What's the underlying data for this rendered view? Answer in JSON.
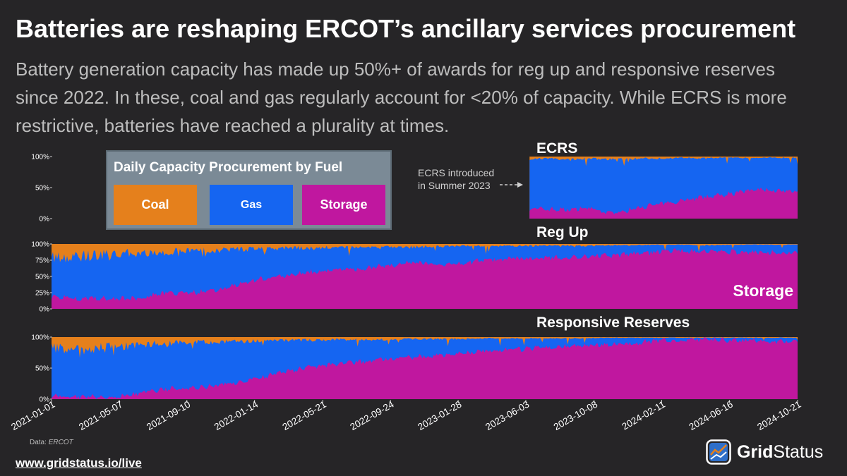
{
  "title": "Batteries are reshaping ERCOT’s ancillary services procurement",
  "subtitle": "Battery generation capacity has made up 50%+ of awards for reg up and responsive reserves since 2022. In these, coal and gas regularly account for <20% of capacity. While ECRS is more restrictive, batteries have reached a plurality at times.",
  "source_label": "Data:",
  "source_name": "ERCOT",
  "footer_link": "www.gridstatus.io/live",
  "brand": {
    "part1": "Grid",
    "part2": "Status"
  },
  "legend": {
    "title": "Daily Capacity Procurement by Fuel",
    "items": [
      {
        "label": "Coal",
        "color": "#e5801c"
      },
      {
        "label": "Gas",
        "color": "#1565f1"
      },
      {
        "label": "Storage",
        "color": "#c0179f"
      }
    ]
  },
  "annotation": {
    "line1": "ECRS introduced",
    "line2": "in Summer 2023"
  },
  "colors": {
    "coal": "#e5801c",
    "gas": "#1565f1",
    "storage": "#c0179f",
    "background": "#262527",
    "text_muted": "#bdbdbd"
  },
  "chart_data": {
    "type": "area",
    "stacked": true,
    "percent": true,
    "x_range": [
      "2021-01-01",
      "2024-10-21"
    ],
    "x_tick_labels": [
      "2021-01-01",
      "2021-05-07",
      "2021-09-10",
      "2022-01-14",
      "2022-05-21",
      "2022-09-24",
      "2023-01-28",
      "2023-06-03",
      "2023-10-08",
      "2024-02-11",
      "2024-06-16",
      "2024-10-21"
    ],
    "series_names": [
      "Coal",
      "Gas",
      "Storage"
    ],
    "panels": [
      {
        "title": "ECRS",
        "y_ticks": [
          "100%",
          "50%",
          "0%"
        ],
        "start": "2023-06-10",
        "dates": [
          "2023-06-10",
          "2023-07-15",
          "2023-08-20",
          "2023-09-25",
          "2023-10-25",
          "2023-12-01",
          "2024-01-10",
          "2024-02-15",
          "2024-03-20",
          "2024-04-25",
          "2024-06-01",
          "2024-07-10",
          "2024-08-15",
          "2024-09-20",
          "2024-10-21"
        ],
        "storage": [
          16,
          15,
          14,
          18,
          9,
          11,
          20,
          24,
          30,
          34,
          38,
          43,
          47,
          44,
          42
        ],
        "coal": [
          4,
          3,
          5,
          3,
          4,
          4,
          3,
          3,
          2,
          3,
          2,
          2,
          2,
          2,
          2
        ]
      },
      {
        "title": "Reg Up",
        "overlay_label": "Storage",
        "y_ticks": [
          "100%",
          "75%",
          "50%",
          "25%",
          "0%"
        ],
        "start": "2021-01-01",
        "dates": [
          "2021-01-01",
          "2021-03-01",
          "2021-05-01",
          "2021-06-15",
          "2021-08-01",
          "2021-09-15",
          "2021-11-01",
          "2021-12-15",
          "2022-02-01",
          "2022-03-15",
          "2022-05-01",
          "2022-06-15",
          "2022-08-01",
          "2022-09-15",
          "2022-11-01",
          "2022-12-15",
          "2023-02-01",
          "2023-03-15",
          "2023-05-01",
          "2023-06-15",
          "2023-08-01",
          "2023-09-15",
          "2023-11-01",
          "2023-12-15",
          "2024-02-01",
          "2024-03-15",
          "2024-05-01",
          "2024-06-15",
          "2024-08-01",
          "2024-09-15",
          "2024-10-21"
        ],
        "storage": [
          18,
          16,
          15,
          17,
          24,
          25,
          28,
          38,
          47,
          52,
          57,
          60,
          62,
          66,
          72,
          68,
          70,
          74,
          77,
          79,
          80,
          80,
          82,
          84,
          88,
          90,
          89,
          88,
          87,
          86,
          86
        ],
        "coal": [
          20,
          18,
          16,
          14,
          12,
          10,
          10,
          8,
          8,
          6,
          6,
          5,
          5,
          4,
          5,
          4,
          3,
          3,
          3,
          3,
          2,
          3,
          2,
          2,
          1,
          1,
          2,
          1,
          1,
          1,
          1
        ]
      },
      {
        "title": "Responsive Reserves",
        "y_ticks": [
          "100%",
          "50%",
          "0%"
        ],
        "start": "2021-01-01",
        "dates": [
          "2021-01-01",
          "2021-03-01",
          "2021-05-01",
          "2021-06-15",
          "2021-08-01",
          "2021-09-15",
          "2021-11-01",
          "2021-12-15",
          "2022-02-01",
          "2022-03-15",
          "2022-05-01",
          "2022-06-15",
          "2022-08-01",
          "2022-09-15",
          "2022-11-01",
          "2022-12-15",
          "2023-02-01",
          "2023-03-15",
          "2023-05-01",
          "2023-06-15",
          "2023-08-01",
          "2023-09-15",
          "2023-11-01",
          "2023-12-15",
          "2024-02-01",
          "2024-03-15",
          "2024-05-01",
          "2024-06-15",
          "2024-08-01",
          "2024-09-15",
          "2024-10-21"
        ],
        "storage": [
          5,
          4,
          3,
          10,
          16,
          18,
          22,
          28,
          36,
          45,
          52,
          56,
          60,
          64,
          68,
          70,
          74,
          78,
          80,
          82,
          84,
          86,
          88,
          90,
          94,
          95,
          96,
          95,
          94,
          93,
          93
        ],
        "coal": [
          18,
          20,
          16,
          12,
          10,
          8,
          8,
          7,
          6,
          5,
          5,
          4,
          4,
          4,
          3,
          3,
          3,
          2,
          2,
          2,
          2,
          2,
          1,
          1,
          1,
          1,
          1,
          1,
          1,
          1,
          1
        ]
      }
    ]
  }
}
